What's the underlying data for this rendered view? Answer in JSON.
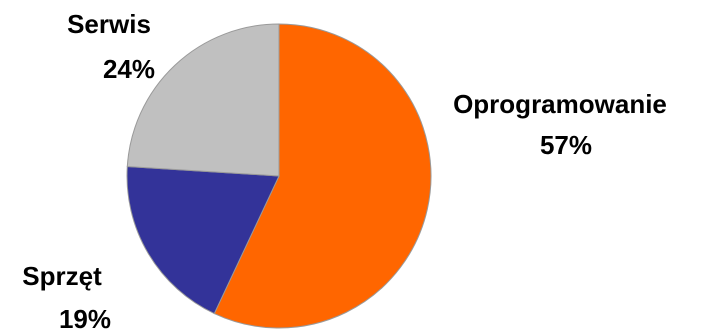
{
  "chart_data": {
    "type": "pie",
    "title": "",
    "slices": [
      {
        "label": "Oprogramowanie",
        "value": 57,
        "display": "57%",
        "color": "#FF6600"
      },
      {
        "label": "Sprzęt",
        "value": 19,
        "display": "19%",
        "color": "#333399"
      },
      {
        "label": "Serwis",
        "value": 24,
        "display": "24%",
        "color": "#C0C0C0"
      }
    ],
    "start_angle": "12 o'clock",
    "direction": "clockwise",
    "legend": "none",
    "labels": "outside, name above percentage"
  }
}
